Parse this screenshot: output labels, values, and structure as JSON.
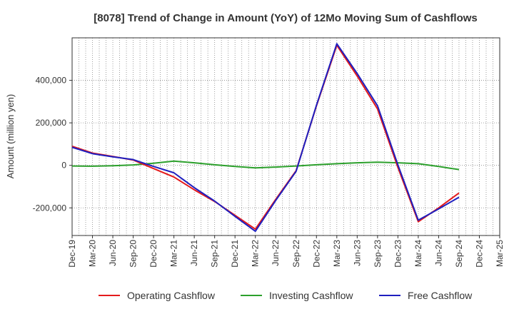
{
  "chart_data": {
    "type": "line",
    "title": "[8078]  Trend of Change in Amount (YoY) of 12Mo Moving Sum of Cashflows",
    "xlabel": "",
    "ylabel": "Amount (million yen)",
    "ylim": [
      -330000,
      600000
    ],
    "yticks": [
      -200000,
      0,
      200000,
      400000
    ],
    "ytick_labels": [
      "-200,000",
      "0",
      "200,000",
      "400,000"
    ],
    "categories": [
      "Dec-19",
      "Mar-20",
      "Jun-20",
      "Sep-20",
      "Dec-20",
      "Mar-21",
      "Jun-21",
      "Sep-21",
      "Dec-21",
      "Mar-22",
      "Jun-22",
      "Sep-22",
      "Dec-22",
      "Mar-23",
      "Jun-23",
      "Sep-23",
      "Dec-23",
      "Mar-24",
      "Jun-24",
      "Sep-24",
      "Dec-24",
      "Mar-25"
    ],
    "series": [
      {
        "name": "Operating Cashflow",
        "color": "#e41a1c",
        "values": [
          90000,
          58000,
          42000,
          25000,
          -15000,
          -55000,
          -115000,
          -170000,
          -235000,
          -300000,
          -160000,
          -25000,
          280000,
          565000,
          420000,
          265000,
          -10000,
          -265000,
          -200000,
          -130000,
          null,
          null
        ]
      },
      {
        "name": "Investing Cashflow",
        "color": "#2ca02c",
        "values": [
          -3000,
          -4000,
          -2000,
          2000,
          10000,
          20000,
          12000,
          3000,
          -5000,
          -12000,
          -8000,
          -3000,
          3000,
          8000,
          12000,
          15000,
          12000,
          8000,
          -5000,
          -20000,
          null,
          null
        ]
      },
      {
        "name": "Free Cashflow",
        "color": "#1f1fbf",
        "values": [
          85000,
          55000,
          40000,
          27000,
          -5000,
          -35000,
          -105000,
          -168000,
          -240000,
          -310000,
          -165000,
          -28000,
          283000,
          572000,
          432000,
          280000,
          2000,
          -258000,
          -205000,
          -150000,
          null,
          null
        ]
      }
    ],
    "legend_position": "bottom",
    "grid": true
  }
}
